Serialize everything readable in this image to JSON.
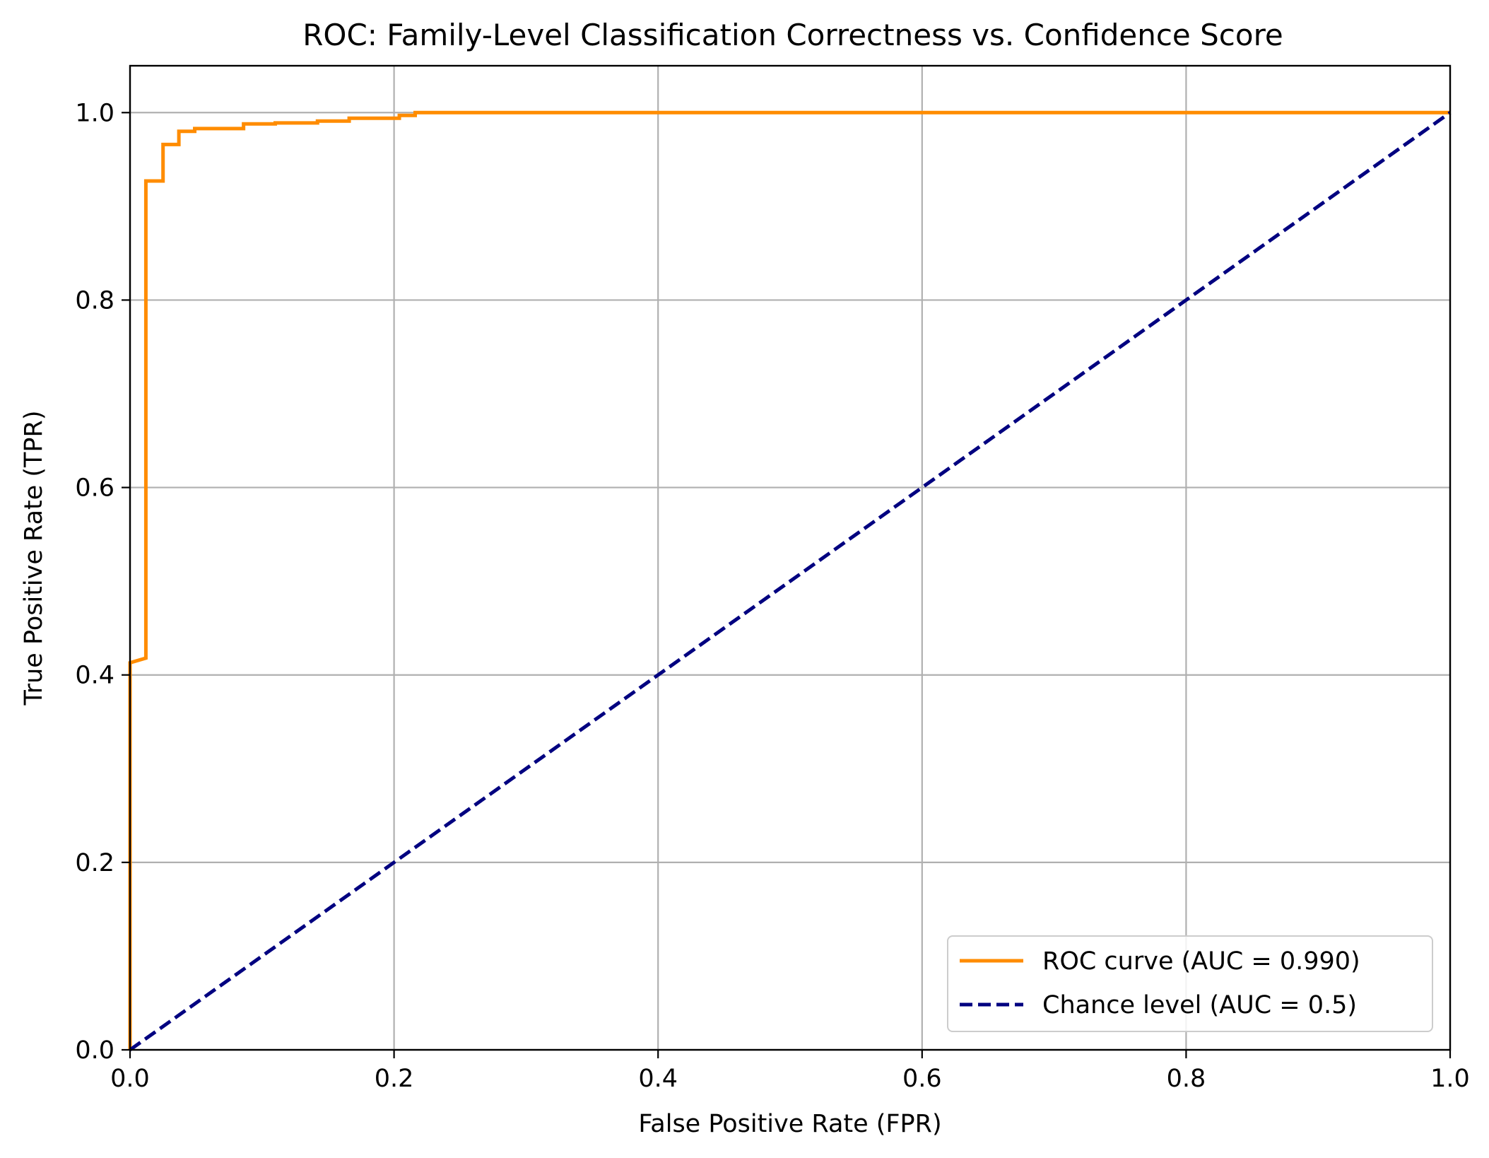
{
  "chart_data": {
    "type": "line",
    "title": "ROC: Family-Level Classification Correctness vs. Confidence Score",
    "xlabel": "False Positive Rate (FPR)",
    "ylabel": "True Positive Rate (TPR)",
    "xlim": [
      0.0,
      1.0
    ],
    "ylim": [
      0.0,
      1.05
    ],
    "xticks": [
      0.0,
      0.2,
      0.4,
      0.6,
      0.8,
      1.0
    ],
    "xtick_labels": [
      "0.0",
      "0.2",
      "0.4",
      "0.6",
      "0.8",
      "1.0"
    ],
    "yticks": [
      0.0,
      0.2,
      0.4,
      0.6,
      0.8,
      1.0
    ],
    "ytick_labels": [
      "0.0",
      "0.2",
      "0.4",
      "0.6",
      "0.8",
      "1.0"
    ],
    "grid": true,
    "legend_position": "lower-right",
    "series": [
      {
        "name": "ROC curve (AUC = 0.990)",
        "color": "#ff8c00",
        "style": "solid",
        "x": [
          0.0,
          0.0,
          0.0,
          0.0,
          0.012,
          0.012,
          0.025,
          0.025,
          0.037,
          0.037,
          0.049,
          0.049,
          0.086,
          0.086,
          0.11,
          0.11,
          0.142,
          0.142,
          0.166,
          0.166,
          0.204,
          0.204,
          0.216,
          0.216,
          1.0
        ],
        "y": [
          0.0,
          0.0,
          0.413,
          0.413,
          0.418,
          0.927,
          0.927,
          0.966,
          0.966,
          0.98,
          0.98,
          0.983,
          0.983,
          0.988,
          0.988,
          0.989,
          0.989,
          0.991,
          0.991,
          0.994,
          0.994,
          0.997,
          0.997,
          1.0,
          1.0
        ]
      },
      {
        "name": "Chance level (AUC = 0.5)",
        "color": "#000080",
        "style": "dashed",
        "x": [
          0.0,
          1.0
        ],
        "y": [
          0.0,
          1.0
        ]
      }
    ]
  }
}
